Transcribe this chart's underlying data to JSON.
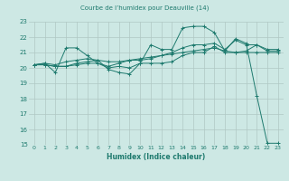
{
  "title": "Courbe de l’humidex pour Deauville (14)",
  "xlabel": "Humidex (Indice chaleur)",
  "xlim": [
    -0.5,
    23.5
  ],
  "ylim": [
    15,
    23
  ],
  "xticks": [
    0,
    1,
    2,
    3,
    4,
    5,
    6,
    7,
    8,
    9,
    10,
    11,
    12,
    13,
    14,
    15,
    16,
    17,
    18,
    19,
    20,
    21,
    22,
    23
  ],
  "yticks": [
    15,
    16,
    17,
    18,
    19,
    20,
    21,
    22,
    23
  ],
  "bg_color": "#cde8e4",
  "grid_color": "#b0c8c4",
  "line_color": "#1e7a6e",
  "lines": [
    {
      "x": [
        0,
        1,
        2,
        3,
        4,
        5,
        6,
        7,
        8,
        9,
        10,
        11,
        12,
        13,
        14,
        15,
        16,
        17,
        18,
        19,
        20,
        21,
        22,
        23
      ],
      "y": [
        20.2,
        20.3,
        19.7,
        21.3,
        21.3,
        20.8,
        20.3,
        20.0,
        20.1,
        20.0,
        20.3,
        21.5,
        21.2,
        21.2,
        22.6,
        22.7,
        22.7,
        22.3,
        21.1,
        21.9,
        21.6,
        18.2,
        15.1,
        15.1
      ]
    },
    {
      "x": [
        0,
        1,
        2,
        3,
        4,
        5,
        6,
        7,
        8,
        9,
        10,
        11,
        12,
        13,
        14,
        15,
        16,
        17,
        18,
        19,
        20,
        21,
        22,
        23
      ],
      "y": [
        20.2,
        20.2,
        20.1,
        20.1,
        20.2,
        20.3,
        20.3,
        20.1,
        20.3,
        20.5,
        20.6,
        20.7,
        20.8,
        20.9,
        21.0,
        21.1,
        21.2,
        21.3,
        21.1,
        21.0,
        21.0,
        21.0,
        21.0,
        21.0
      ]
    },
    {
      "x": [
        0,
        1,
        2,
        3,
        4,
        5,
        6,
        7,
        8,
        9,
        10,
        11,
        12,
        13,
        14,
        15,
        16,
        17,
        18,
        19,
        20,
        21,
        22,
        23
      ],
      "y": [
        20.2,
        20.2,
        20.1,
        20.1,
        20.3,
        20.4,
        20.5,
        19.9,
        19.7,
        19.6,
        20.3,
        20.3,
        20.3,
        20.4,
        20.8,
        21.0,
        21.0,
        21.4,
        21.0,
        21.0,
        21.1,
        21.5,
        21.1,
        21.1
      ]
    },
    {
      "x": [
        0,
        1,
        2,
        3,
        4,
        5,
        6,
        7,
        8,
        9,
        10,
        11,
        12,
        13,
        14,
        15,
        16,
        17,
        18,
        19,
        20,
        21,
        22,
        23
      ],
      "y": [
        20.2,
        20.3,
        20.2,
        20.4,
        20.5,
        20.6,
        20.5,
        20.4,
        20.4,
        20.5,
        20.5,
        20.6,
        20.8,
        21.0,
        21.3,
        21.5,
        21.5,
        21.6,
        21.2,
        21.8,
        21.5,
        21.5,
        21.2,
        21.2
      ]
    }
  ]
}
